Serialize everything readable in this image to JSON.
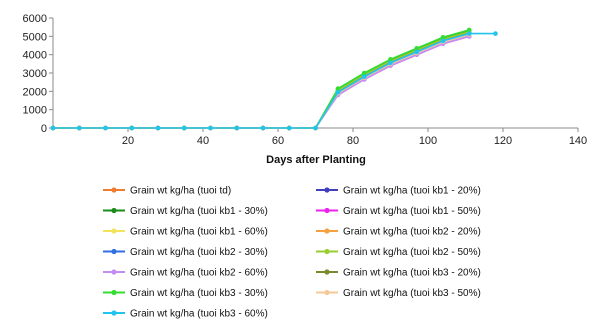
{
  "chart_data": {
    "type": "line",
    "title": "",
    "xlabel": "Days after Planting",
    "ylabel": "",
    "xlim": [
      0,
      140
    ],
    "ylim": [
      0,
      6000
    ],
    "xticks": [
      20,
      40,
      60,
      80,
      100,
      120,
      140
    ],
    "yticks": [
      0,
      1000,
      2000,
      3000,
      4000,
      5000,
      6000
    ],
    "grid": false,
    "legend_position": "bottom",
    "series": [
      {
        "name": "Grain wt kg/ha (tuoi td)",
        "color": "#ed7d31",
        "x": [
          0,
          7,
          14,
          21,
          28,
          35,
          42,
          49,
          56,
          63,
          70,
          76,
          83,
          90,
          97,
          104,
          111
        ],
        "y": [
          0,
          0,
          0,
          0,
          0,
          0,
          0,
          0,
          0,
          0,
          0,
          2000,
          2850,
          3600,
          4200,
          4800,
          5200
        ]
      },
      {
        "name": "Grain wt kg/ha (tuoi kb1 - 20%)",
        "color": "#3f3fbf",
        "x": [
          0,
          7,
          14,
          21,
          28,
          35,
          42,
          49,
          56,
          63,
          70,
          76,
          83,
          90,
          97,
          104,
          111
        ],
        "y": [
          0,
          0,
          0,
          0,
          0,
          0,
          0,
          0,
          0,
          0,
          0,
          1950,
          2800,
          3550,
          4150,
          4750,
          5150
        ]
      },
      {
        "name": "Grain wt kg/ha (tuoi kb1 - 30%)",
        "color": "#1a8c1a",
        "x": [
          0,
          7,
          14,
          21,
          28,
          35,
          42,
          49,
          56,
          63,
          70,
          76,
          83,
          90,
          97,
          104,
          111
        ],
        "y": [
          0,
          0,
          0,
          0,
          0,
          0,
          0,
          0,
          0,
          0,
          0,
          2100,
          2950,
          3700,
          4300,
          4900,
          5300
        ]
      },
      {
        "name": "Grain wt kg/ha (tuoi kb1 - 50%)",
        "color": "#ee22ee",
        "x": [
          0,
          7,
          14,
          21,
          28,
          35,
          42,
          49,
          56,
          63,
          70,
          76,
          83,
          90,
          97,
          104,
          111
        ],
        "y": [
          0,
          0,
          0,
          0,
          0,
          0,
          0,
          0,
          0,
          0,
          0,
          1850,
          2650,
          3400,
          4000,
          4600,
          5000
        ]
      },
      {
        "name": "Grain wt kg/ha (tuoi kb1 - 60%)",
        "color": "#f2e35a",
        "x": [
          0,
          7,
          14,
          21,
          28,
          35,
          42,
          49,
          56,
          63,
          70,
          76,
          83,
          90,
          97,
          104,
          111
        ],
        "y": [
          0,
          0,
          0,
          0,
          0,
          0,
          0,
          0,
          0,
          0,
          0,
          1900,
          2750,
          3500,
          4100,
          4700,
          5100
        ]
      },
      {
        "name": "Grain wt kg/ha (tuoi kb2 - 20%)",
        "color": "#f7a040",
        "x": [
          0,
          7,
          14,
          21,
          28,
          35,
          42,
          49,
          56,
          63,
          70,
          76,
          83,
          90,
          97,
          104,
          111
        ],
        "y": [
          0,
          0,
          0,
          0,
          0,
          0,
          0,
          0,
          0,
          0,
          0,
          1950,
          2800,
          3550,
          4150,
          4750,
          5150
        ]
      },
      {
        "name": "Grain wt kg/ha (tuoi kb2 - 30%)",
        "color": "#2f6fe0",
        "x": [
          0,
          7,
          14,
          21,
          28,
          35,
          42,
          49,
          56,
          63,
          70,
          76,
          83,
          90,
          97,
          104,
          111
        ],
        "y": [
          0,
          0,
          0,
          0,
          0,
          0,
          0,
          0,
          0,
          0,
          0,
          2000,
          2850,
          3600,
          4200,
          4800,
          5200
        ]
      },
      {
        "name": "Grain wt kg/ha (tuoi kb2 - 50%)",
        "color": "#9acd32",
        "x": [
          0,
          7,
          14,
          21,
          28,
          35,
          42,
          49,
          56,
          63,
          70,
          76,
          83,
          90,
          97,
          104,
          111
        ],
        "y": [
          0,
          0,
          0,
          0,
          0,
          0,
          0,
          0,
          0,
          0,
          0,
          2050,
          2900,
          3650,
          4250,
          4850,
          5250
        ]
      },
      {
        "name": "Grain wt kg/ha (tuoi kb2 - 60%)",
        "color": "#c48ef0",
        "x": [
          0,
          7,
          14,
          21,
          28,
          35,
          42,
          49,
          56,
          63,
          70,
          76,
          83,
          90,
          97,
          104,
          111
        ],
        "y": [
          0,
          0,
          0,
          0,
          0,
          0,
          0,
          0,
          0,
          0,
          0,
          1800,
          2650,
          3400,
          4000,
          4600,
          5000
        ]
      },
      {
        "name": "Grain wt kg/ha (tuoi kb3 - 20%)",
        "color": "#7a8a2a",
        "x": [
          0,
          7,
          14,
          21,
          28,
          35,
          42,
          49,
          56,
          63,
          70,
          76,
          83,
          90,
          97,
          104,
          111
        ],
        "y": [
          0,
          0,
          0,
          0,
          0,
          0,
          0,
          0,
          0,
          0,
          0,
          1950,
          2800,
          3550,
          4150,
          4750,
          5150
        ]
      },
      {
        "name": "Grain wt kg/ha (tuoi kb3 - 30%)",
        "color": "#33dd33",
        "x": [
          0,
          7,
          14,
          21,
          28,
          35,
          42,
          49,
          56,
          63,
          70,
          76,
          83,
          90,
          97,
          104,
          111
        ],
        "y": [
          0,
          0,
          0,
          0,
          0,
          0,
          0,
          0,
          0,
          0,
          0,
          2150,
          3000,
          3750,
          4350,
          4950,
          5350
        ]
      },
      {
        "name": "Grain wt kg/ha (tuoi kb3 - 50%)",
        "color": "#f5c89a",
        "x": [
          0,
          7,
          14,
          21,
          28,
          35,
          42,
          49,
          56,
          63,
          70,
          76,
          83,
          90,
          97,
          104,
          111
        ],
        "y": [
          0,
          0,
          0,
          0,
          0,
          0,
          0,
          0,
          0,
          0,
          0,
          1900,
          2750,
          3500,
          4100,
          4700,
          5100
        ]
      },
      {
        "name": "Grain wt kg/ha (tuoi kb3 - 60%)",
        "color": "#22c4ee",
        "x": [
          0,
          7,
          14,
          21,
          28,
          35,
          42,
          49,
          56,
          63,
          70,
          76,
          83,
          90,
          97,
          104,
          111,
          118
        ],
        "y": [
          0,
          0,
          0,
          0,
          0,
          0,
          0,
          0,
          0,
          0,
          0,
          1950,
          2800,
          3550,
          4150,
          4750,
          5150,
          5150
        ]
      }
    ]
  }
}
